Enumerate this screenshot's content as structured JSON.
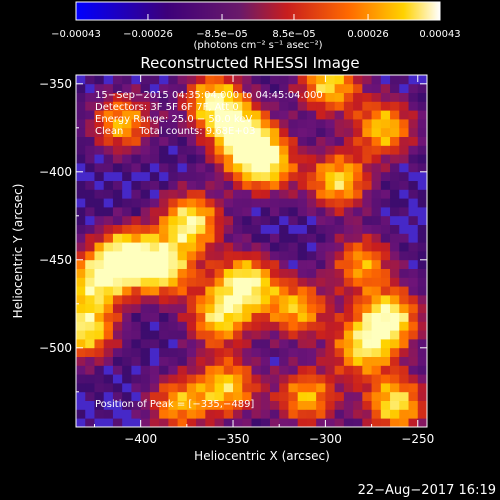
{
  "colorbar": {
    "tick_labels": [
      "−0.00043",
      "−0.00026",
      "−8.5e−05",
      "8.5e−05",
      "0.00026",
      "0.00043"
    ],
    "tick_values": [
      -0.00043,
      -0.00026,
      -8.5e-05,
      8.5e-05,
      0.00026,
      0.00043
    ],
    "range": [
      -0.00043,
      0.00043
    ],
    "units_label": "(photons cm⁻² s⁻¹ asec⁻²)",
    "colors": [
      "#0000ff",
      "#3d007a",
      "#7a1a7a",
      "#c81e1e",
      "#ff6a00",
      "#ffd200",
      "#ffffff"
    ]
  },
  "info": {
    "line1": "15−Sep−2015 04:35:04.000 to 04:45:04.000",
    "line2": "Detectors: 3F 5F 6F 7F, Att 0",
    "line3": "Energy Range: 25.0 − 50.0 keV",
    "line4": "Clean     Total counts: 9.68E+03"
  },
  "peak_label": "Position of Peak = [−335,−489]",
  "footer_date": "22−Aug−2017 16:19",
  "chart_data": {
    "type": "heatmap",
    "title": "Reconstructed RHESSI Image",
    "xlabel": "Heliocentric X (arcsec)",
    "ylabel": "Heliocentric Y (arcsec)",
    "xlim": [
      -435,
      -245
    ],
    "ylim": [
      -545,
      -345
    ],
    "x_ticks": [
      -400,
      -350,
      -300,
      -250
    ],
    "x_tick_labels": [
      "−400",
      "−350",
      "−300",
      "−250"
    ],
    "y_ticks": [
      -350,
      -400,
      -450,
      -500
    ],
    "y_tick_labels": [
      "−350",
      "−400",
      "−450",
      "−500"
    ],
    "peak": [
      -335,
      -489
    ],
    "sources": [
      {
        "x": -360,
        "y": -360,
        "intensity": 0.9
      },
      {
        "x": -345,
        "y": -380,
        "intensity": 1.0
      },
      {
        "x": -333,
        "y": -395,
        "intensity": 0.95
      },
      {
        "x": -410,
        "y": -372,
        "intensity": 0.75
      },
      {
        "x": -298,
        "y": -350,
        "intensity": 0.85
      },
      {
        "x": -268,
        "y": -375,
        "intensity": 0.8
      },
      {
        "x": -293,
        "y": -405,
        "intensity": 0.85
      },
      {
        "x": -373,
        "y": -428,
        "intensity": 0.95
      },
      {
        "x": -408,
        "y": -448,
        "intensity": 1.0
      },
      {
        "x": -387,
        "y": -455,
        "intensity": 0.85
      },
      {
        "x": -425,
        "y": -462,
        "intensity": 0.8
      },
      {
        "x": -430,
        "y": -490,
        "intensity": 0.9
      },
      {
        "x": -343,
        "y": -463,
        "intensity": 0.95
      },
      {
        "x": -358,
        "y": -483,
        "intensity": 0.8
      },
      {
        "x": -280,
        "y": -452,
        "intensity": 0.7
      },
      {
        "x": -315,
        "y": -478,
        "intensity": 0.75
      },
      {
        "x": -265,
        "y": -483,
        "intensity": 0.95
      },
      {
        "x": -280,
        "y": -500,
        "intensity": 0.8
      },
      {
        "x": -310,
        "y": -528,
        "intensity": 0.75
      },
      {
        "x": -353,
        "y": -522,
        "intensity": 0.8
      },
      {
        "x": -380,
        "y": -532,
        "intensity": 0.7
      },
      {
        "x": -262,
        "y": -532,
        "intensity": 0.9
      }
    ]
  }
}
